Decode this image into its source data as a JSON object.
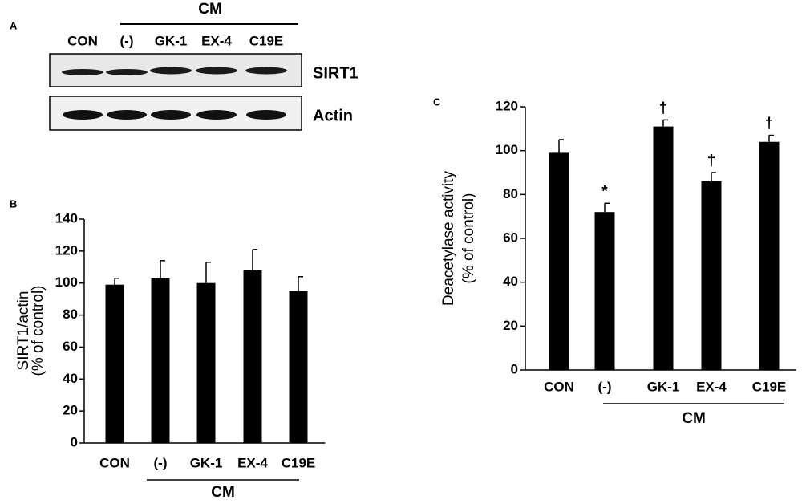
{
  "blot": {
    "panel": "A",
    "group_label": "CM",
    "lanes": [
      "CON",
      "(-)",
      "GK-1",
      "EX-4",
      "C19E"
    ],
    "rows": [
      "SIRT1",
      "Actin"
    ]
  },
  "chart_data": [
    {
      "type": "bar",
      "panel": "B",
      "ylabel": [
        "SIRT1/actin",
        "(% of control)"
      ],
      "categories": [
        "CON",
        "(-)",
        "GK-1",
        "EX-4",
        "C19E"
      ],
      "group_label": "CM",
      "values": [
        99,
        103,
        100,
        108,
        95
      ],
      "errors": [
        4,
        11,
        13,
        13,
        9
      ],
      "color": "#000000",
      "ylim": [
        0,
        140
      ],
      "yticks": [
        0,
        20,
        40,
        60,
        80,
        100,
        120,
        140
      ]
    },
    {
      "type": "bar",
      "panel": "C",
      "ylabel": [
        "Deacetylase activity",
        "(% of control)"
      ],
      "categories": [
        "CON",
        "(-)",
        "GK-1",
        "EX-4",
        "C19E"
      ],
      "group_label": "CM",
      "values": [
        99,
        72,
        111,
        86,
        104
      ],
      "errors": [
        6,
        4,
        3,
        4,
        3
      ],
      "color": "#000000",
      "annotations": [
        null,
        "*",
        "†",
        "†",
        "†"
      ],
      "ylim": [
        0,
        120
      ],
      "yticks": [
        0,
        20,
        40,
        60,
        80,
        100,
        120
      ]
    }
  ]
}
